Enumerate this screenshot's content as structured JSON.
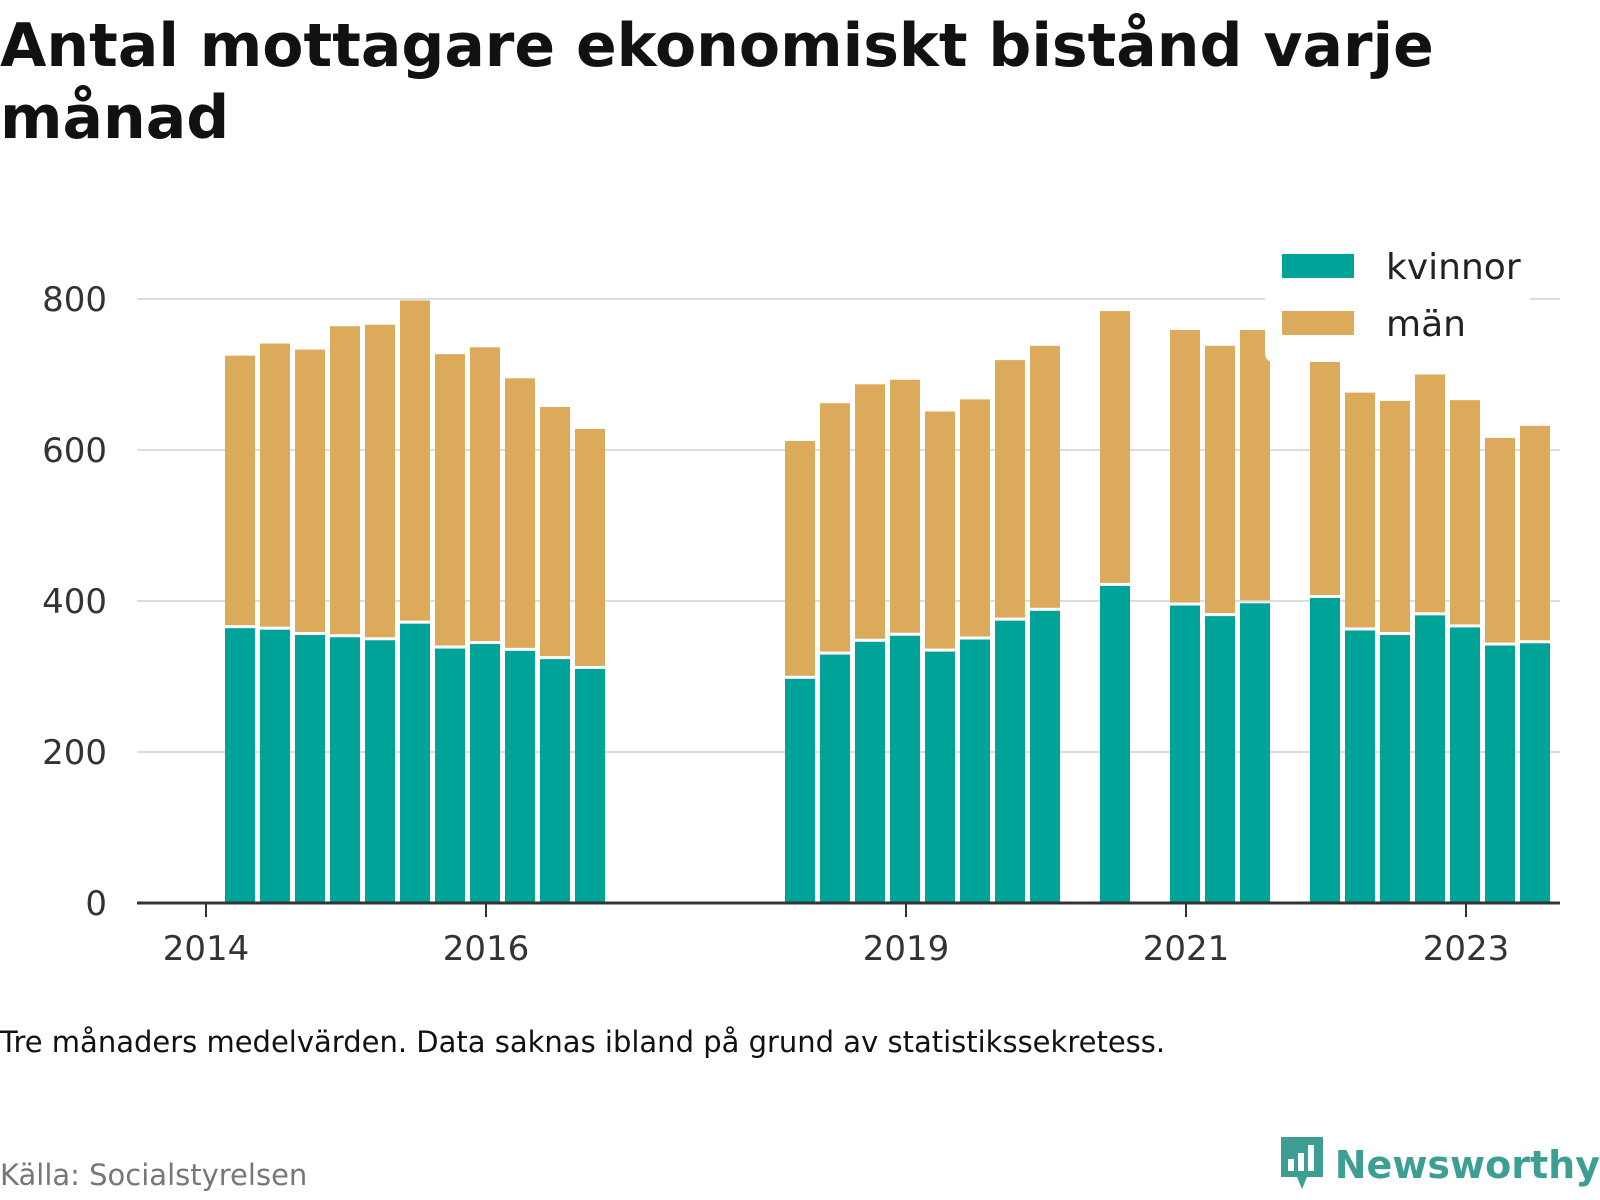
{
  "title": "Antal mottagare ekonomiskt bistånd varje månad",
  "note": "Tre månaders medelvärden. Data saknas ibland på grund av statistikssekretess.",
  "source": "Källa: Socialstyrelsen",
  "brand": "Newsworthy",
  "colors": {
    "kvinnor": "#00a398",
    "man": "#dbab5b",
    "axis": "#333333",
    "grid": "#dddddd",
    "brand": "#3d9e94"
  },
  "chart_data": {
    "type": "bar",
    "stacked": true,
    "x_ticks": [
      "2014",
      "2016",
      "2019",
      "2021",
      "2023"
    ],
    "y_ticks": [
      "0",
      "200",
      "400",
      "600",
      "800"
    ],
    "ylim": [
      0,
      800
    ],
    "grid": true,
    "legend_position": "top-right",
    "categories": [
      "2014-04",
      "2014-07",
      "2014-10",
      "2015-01",
      "2015-04",
      "2015-07",
      "2015-10",
      "2016-01",
      "2016-04",
      "2016-07",
      "2016-10",
      "2018-04",
      "2018-07",
      "2018-10",
      "2019-01",
      "2019-04",
      "2019-07",
      "2019-10",
      "2020-01",
      "2020-07",
      "2021-01",
      "2021-04",
      "2021-07",
      "2022-01",
      "2022-04",
      "2022-07",
      "2022-10",
      "2023-01",
      "2023-04",
      "2023-07"
    ],
    "series": [
      {
        "name": "kvinnor",
        "values": [
          364,
          362,
          355,
          352,
          348,
          370,
          337,
          343,
          334,
          323,
          310,
          297,
          329,
          346,
          354,
          333,
          349,
          374,
          387,
          420,
          394,
          380,
          397,
          404,
          361,
          355,
          381,
          365,
          341,
          344
        ]
      },
      {
        "name": "män",
        "values": [
          361,
          379,
          378,
          412,
          418,
          428,
          390,
          393,
          361,
          334,
          318,
          315,
          333,
          341,
          339,
          318,
          318,
          345,
          351,
          364,
          365,
          358,
          362,
          343,
          315,
          310,
          319,
          301,
          275,
          288
        ]
      }
    ]
  }
}
